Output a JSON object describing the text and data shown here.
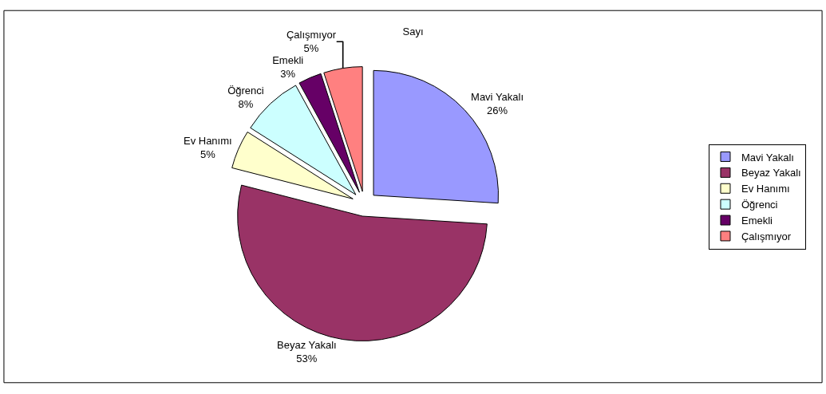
{
  "chart_data": {
    "type": "pie",
    "title": "Sayı",
    "categories": [
      "Mavi Yakalı",
      "Beyaz Yakalı",
      "Ev Hanımı",
      "Öğrenci",
      "Emekli",
      "Çalışmıyor"
    ],
    "values": [
      26,
      53,
      5,
      8,
      3,
      5
    ],
    "value_labels": [
      "26%",
      "53%",
      "5%",
      "8%",
      "3%",
      "5%"
    ],
    "colors": [
      "#9999ff",
      "#993366",
      "#ffffcc",
      "#ccffff",
      "#660066",
      "#ff8080"
    ],
    "legend": "right"
  }
}
